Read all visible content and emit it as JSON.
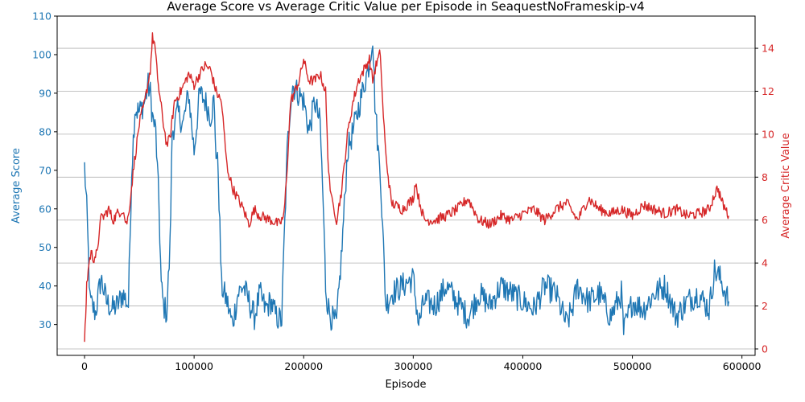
{
  "chart_data": {
    "type": "line",
    "title": "Average Score vs Average Critic Value per Episode in SeaquestNoFrameskip-v4",
    "xlabel": "Episode",
    "ylabel_left": "Average Score",
    "ylabel_right": "Average Critic Value",
    "xlim": [
      -25000,
      612000
    ],
    "ylim_left": [
      22,
      110
    ],
    "ylim_right": [
      -0.3,
      15.5
    ],
    "x_ticks": [
      0,
      100000,
      200000,
      300000,
      400000,
      500000,
      600000
    ],
    "x_tick_labels": [
      "0",
      "100000",
      "200000",
      "300000",
      "400000",
      "500000",
      "600000"
    ],
    "y_left_ticks": [
      30,
      40,
      50,
      60,
      70,
      80,
      90,
      100,
      110
    ],
    "y_right_ticks": [
      0,
      2,
      4,
      6,
      8,
      10,
      12,
      14
    ],
    "grid": "horizontal, right axis",
    "colors": {
      "score": "#1f77b4",
      "critic": "#d62728",
      "grid": "#b0b0b0"
    },
    "series": [
      {
        "axis": "left",
        "color": "#1f77b4",
        "x": [
          0,
          2000,
          5000,
          10000,
          15000,
          20000,
          25000,
          30000,
          35000,
          40000,
          43000,
          46000,
          50000,
          55000,
          58000,
          60000,
          62000,
          65000,
          68000,
          70000,
          72000,
          75000,
          78000,
          80000,
          85000,
          90000,
          95000,
          100000,
          105000,
          110000,
          115000,
          118000,
          120000,
          122000,
          125000,
          130000,
          135000,
          140000,
          145000,
          150000,
          155000,
          160000,
          165000,
          170000,
          175000,
          180000,
          182000,
          185000,
          188000,
          190000,
          195000,
          200000,
          205000,
          210000,
          215000,
          218000,
          220000,
          222000,
          225000,
          230000,
          235000,
          240000,
          245000,
          250000,
          255000,
          260000,
          263000,
          265000,
          268000,
          270000,
          272000,
          275000,
          280000,
          290000,
          300000,
          305000,
          310000,
          320000,
          330000,
          340000,
          350000,
          360000,
          370000,
          380000,
          390000,
          400000,
          410000,
          420000,
          430000,
          440000,
          445000,
          450000,
          460000,
          470000,
          480000,
          490000,
          492000,
          500000,
          510000,
          520000,
          530000,
          540000,
          550000,
          560000,
          570000,
          575000,
          580000,
          588000
        ],
        "y": [
          71,
          60,
          36,
          33,
          42,
          36,
          34,
          35,
          38,
          35,
          70,
          86,
          85,
          88,
          92,
          90,
          84,
          80,
          60,
          40,
          35,
          33,
          50,
          80,
          85,
          82,
          90,
          75,
          90,
          88,
          84,
          88,
          75,
          70,
          40,
          36,
          30,
          38,
          40,
          36,
          32,
          38,
          34,
          36,
          32,
          31,
          50,
          75,
          88,
          92,
          90,
          88,
          80,
          88,
          82,
          60,
          40,
          35,
          32,
          30,
          50,
          75,
          80,
          86,
          92,
          98,
          105,
          88,
          75,
          70,
          55,
          35,
          38,
          40,
          42,
          30,
          36,
          35,
          40,
          36,
          32,
          38,
          35,
          40,
          38,
          36,
          34,
          40,
          38,
          30,
          34,
          40,
          36,
          38,
          32,
          38,
          28,
          36,
          34,
          38,
          40,
          32,
          36,
          38,
          34,
          44,
          42,
          36
        ]
      },
      {
        "axis": "right",
        "color": "#d62728",
        "x": [
          0,
          1000,
          2000,
          4000,
          6000,
          8000,
          12000,
          14000,
          18000,
          22000,
          26000,
          30000,
          35000,
          38000,
          40000,
          45000,
          50000,
          55000,
          60000,
          62000,
          64000,
          66000,
          68000,
          72000,
          75000,
          78000,
          82000,
          88000,
          95000,
          100000,
          105000,
          110000,
          115000,
          120000,
          125000,
          130000,
          135000,
          140000,
          145000,
          150000,
          155000,
          160000,
          170000,
          178000,
          182000,
          185000,
          188000,
          192000,
          196000,
          200000,
          202000,
          205000,
          210000,
          215000,
          220000,
          222000,
          225000,
          228000,
          230000,
          235000,
          240000,
          245000,
          250000,
          255000,
          260000,
          263000,
          266000,
          270000,
          272000,
          275000,
          280000,
          290000,
          300000,
          302000,
          305000,
          310000,
          320000,
          330000,
          340000,
          350000,
          360000,
          370000,
          380000,
          390000,
          400000,
          410000,
          420000,
          430000,
          440000,
          450000,
          460000,
          470000,
          480000,
          490000,
          500000,
          510000,
          520000,
          530000,
          540000,
          550000,
          560000,
          570000,
          575000,
          578000,
          582000,
          588000
        ],
        "y": [
          0.3,
          1.5,
          3,
          4,
          4.5,
          4.2,
          4.5,
          6,
          6.2,
          6.5,
          6,
          6.3,
          6.5,
          5.8,
          6.2,
          8.5,
          10.5,
          11.5,
          13,
          14.5,
          14.2,
          13,
          12,
          10.5,
          9.5,
          9.8,
          11.5,
          12,
          12.8,
          12.3,
          12.8,
          13.2,
          13,
          12,
          11.5,
          8.5,
          7.5,
          7,
          6.5,
          5.8,
          6.5,
          6.2,
          6,
          5.8,
          6.2,
          8.5,
          11.5,
          12,
          12.5,
          13.5,
          13,
          12.5,
          12.5,
          12.8,
          12,
          9,
          7,
          6.5,
          6,
          7.5,
          10,
          11.5,
          12.5,
          13,
          13.5,
          12.5,
          13.2,
          13.8,
          11.5,
          9,
          6.8,
          6.5,
          7,
          7.8,
          7,
          6,
          6,
          6.2,
          6.5,
          7,
          6,
          5.8,
          6.2,
          6,
          6.3,
          6.5,
          6,
          6.5,
          6.8,
          6,
          7,
          6.5,
          6.3,
          6.5,
          6.2,
          6.7,
          6.5,
          6.3,
          6.5,
          6.2,
          6.3,
          6.5,
          7.2,
          7.5,
          6.8,
          6.2
        ]
      }
    ]
  }
}
